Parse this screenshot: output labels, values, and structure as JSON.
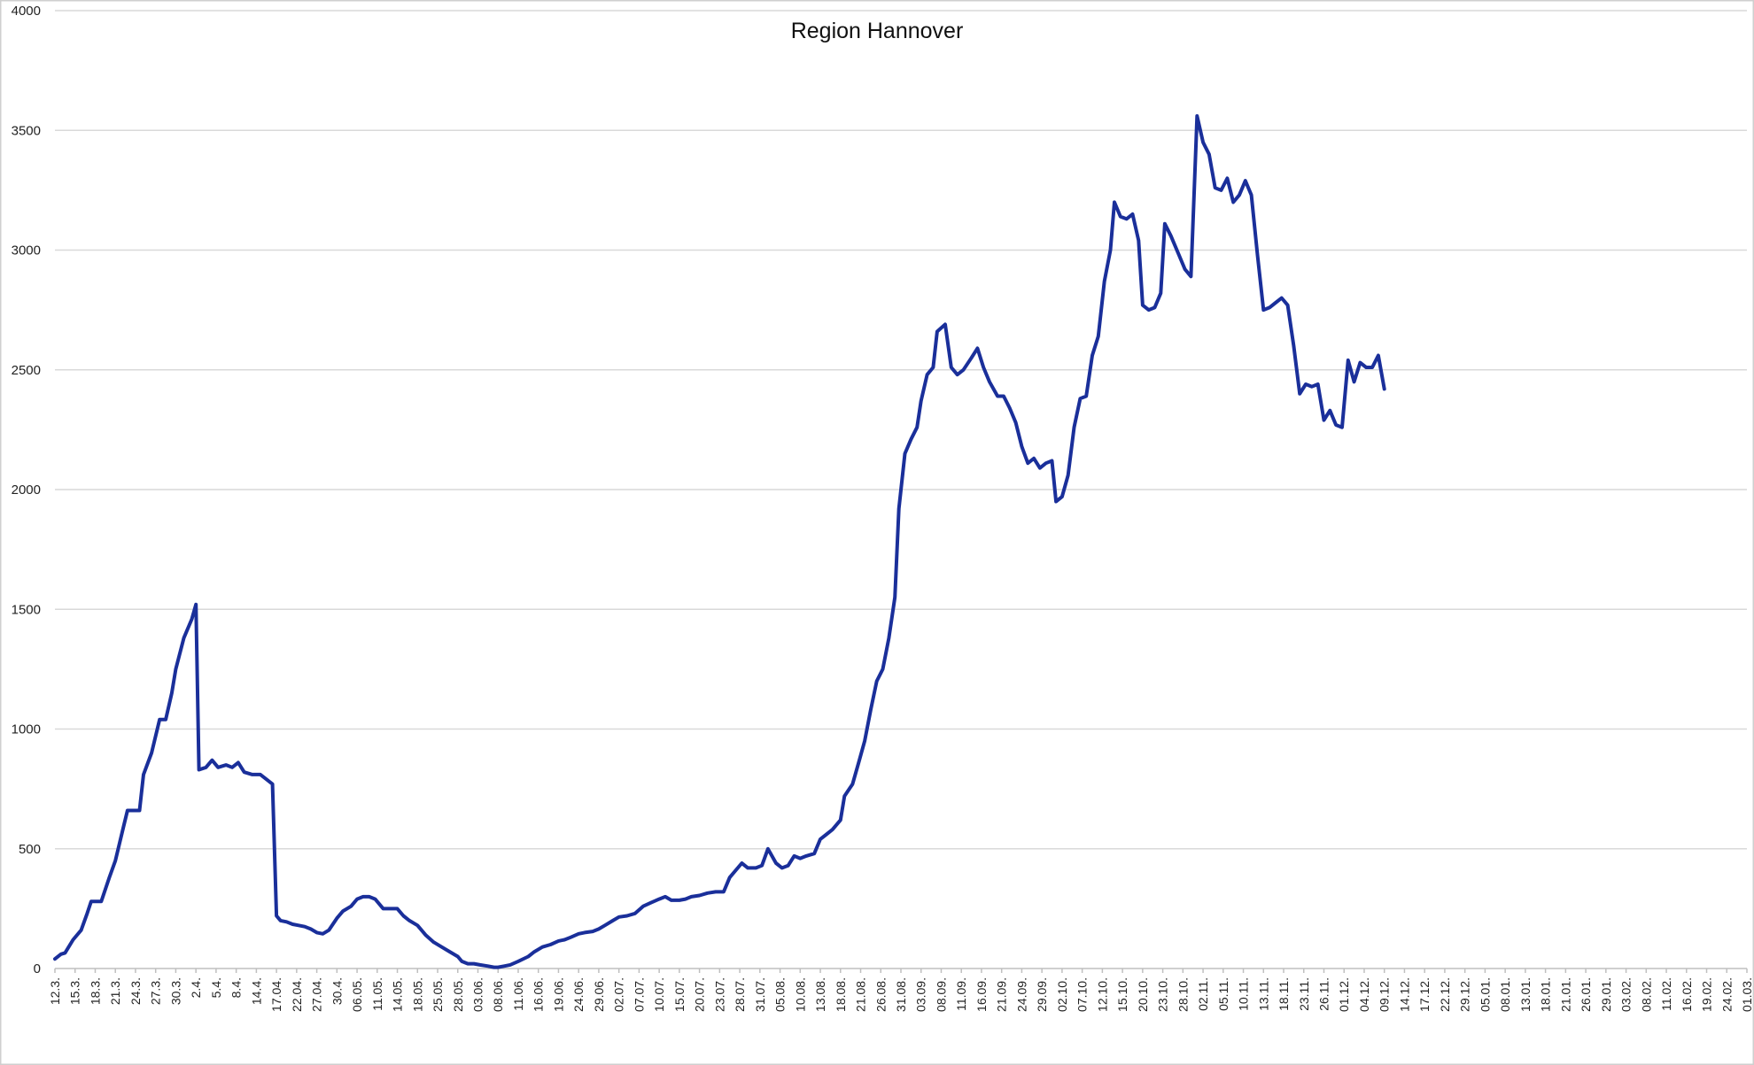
{
  "chart_data": {
    "type": "line",
    "title": "Region Hannover",
    "xlabel": "",
    "ylabel": "",
    "ylim": [
      0,
      4000
    ],
    "yticks": [
      "0",
      "500",
      "1000",
      "1500",
      "2000",
      "2500",
      "3000",
      "3500",
      "4000"
    ],
    "grid": true,
    "legend": "none",
    "x_tick_labels": [
      "12.3.",
      "15.3.",
      "18.3.",
      "21.3.",
      "24.3.",
      "27.3.",
      "30.3.",
      "2.4.",
      "5.4.",
      "8.4.",
      "14.4.",
      "17.04.",
      "22.04.",
      "27.04.",
      "30.4.",
      "06.05.",
      "11.05.",
      "14.05.",
      "18.05.",
      "25.05.",
      "28.05.",
      "03.06.",
      "08.06.",
      "11.06.",
      "16.06.",
      "19.06.",
      "24.06.",
      "29.06.",
      "02.07.",
      "07.07.",
      "10.07.",
      "15.07.",
      "20.07.",
      "23.07.",
      "28.07.",
      "31.07.",
      "05.08.",
      "10.08.",
      "13.08.",
      "18.08.",
      "21.08.",
      "26.08.",
      "31.08.",
      "03.09.",
      "08.09.",
      "11.09.",
      "16.09.",
      "21.09.",
      "24.09.",
      "29.09.",
      "02.10.",
      "07.10.",
      "12.10.",
      "15.10.",
      "20.10.",
      "23.10.",
      "28.10.",
      "02.11.",
      "05.11.",
      "10.11.",
      "13.11.",
      "18.11.",
      "23.11.",
      "26.11.",
      "01.12.",
      "04.12.",
      "09.12.",
      "14.12.",
      "17.12.",
      "22.12.",
      "29.12.",
      "05.01.",
      "08.01.",
      "13.01.",
      "18.01.",
      "21.01.",
      "26.01.",
      "29.01.",
      "03.02.",
      "08.02.",
      "11.02.",
      "16.02.",
      "19.02.",
      "24.02.",
      "01.03."
    ],
    "colors": {
      "line": "#1a2f9a",
      "grid": "#d9d9d9"
    },
    "series": [
      {
        "values": [
          [
            0,
            40
          ],
          [
            0.3,
            60
          ],
          [
            0.5,
            65
          ],
          [
            0.9,
            120
          ],
          [
            1.3,
            160
          ],
          [
            1.6,
            230
          ],
          [
            1.8,
            280
          ],
          [
            2.3,
            280
          ],
          [
            2.7,
            380
          ],
          [
            3,
            450
          ],
          [
            3.4,
            590
          ],
          [
            3.6,
            660
          ],
          [
            4,
            660
          ],
          [
            4.2,
            660
          ],
          [
            4.4,
            810
          ],
          [
            4.8,
            900
          ],
          [
            5.2,
            1040
          ],
          [
            5.5,
            1040
          ],
          [
            5.8,
            1150
          ],
          [
            6,
            1250
          ],
          [
            6.4,
            1380
          ],
          [
            6.8,
            1460
          ],
          [
            7,
            1520
          ],
          [
            7.15,
            830
          ],
          [
            7.5,
            840
          ],
          [
            7.8,
            870
          ],
          [
            8.1,
            840
          ],
          [
            8.5,
            850
          ],
          [
            8.8,
            840
          ],
          [
            9.1,
            860
          ],
          [
            9.4,
            820
          ],
          [
            9.8,
            810
          ],
          [
            10.2,
            810
          ],
          [
            10.5,
            790
          ],
          [
            10.8,
            770
          ],
          [
            11,
            220
          ],
          [
            11.2,
            200
          ],
          [
            11.5,
            195
          ],
          [
            11.8,
            185
          ],
          [
            12.1,
            180
          ],
          [
            12.4,
            175
          ],
          [
            12.7,
            165
          ],
          [
            13,
            150
          ],
          [
            13.3,
            145
          ],
          [
            13.6,
            160
          ],
          [
            14,
            210
          ],
          [
            14.3,
            240
          ],
          [
            14.7,
            260
          ],
          [
            15,
            290
          ],
          [
            15.3,
            300
          ],
          [
            15.6,
            300
          ],
          [
            15.9,
            290
          ],
          [
            16.3,
            250
          ],
          [
            16.6,
            250
          ],
          [
            17,
            250
          ],
          [
            17.3,
            220
          ],
          [
            17.6,
            200
          ],
          [
            18,
            180
          ],
          [
            18.4,
            140
          ],
          [
            18.8,
            110
          ],
          [
            19.2,
            90
          ],
          [
            19.6,
            70
          ],
          [
            20,
            50
          ],
          [
            20.2,
            30
          ],
          [
            20.5,
            20
          ],
          [
            20.8,
            20
          ],
          [
            21.1,
            15
          ],
          [
            21.5,
            10
          ],
          [
            21.8,
            5
          ],
          [
            22,
            5
          ],
          [
            22.3,
            10
          ],
          [
            22.6,
            15
          ],
          [
            23,
            30
          ],
          [
            23.5,
            50
          ],
          [
            23.8,
            70
          ],
          [
            24.2,
            90
          ],
          [
            24.6,
            100
          ],
          [
            25,
            115
          ],
          [
            25.3,
            120
          ],
          [
            25.6,
            130
          ],
          [
            26,
            145
          ],
          [
            26.3,
            150
          ],
          [
            26.7,
            155
          ],
          [
            27,
            165
          ],
          [
            27.3,
            180
          ],
          [
            27.7,
            200
          ],
          [
            28,
            215
          ],
          [
            28.4,
            220
          ],
          [
            28.8,
            230
          ],
          [
            29.2,
            260
          ],
          [
            29.6,
            275
          ],
          [
            30,
            290
          ],
          [
            30.3,
            300
          ],
          [
            30.6,
            285
          ],
          [
            31,
            285
          ],
          [
            31.3,
            290
          ],
          [
            31.6,
            300
          ],
          [
            32,
            305
          ],
          [
            32.4,
            315
          ],
          [
            32.8,
            320
          ],
          [
            33.2,
            320
          ],
          [
            33.5,
            380
          ],
          [
            33.8,
            410
          ],
          [
            34.1,
            440
          ],
          [
            34.4,
            420
          ],
          [
            34.8,
            420
          ],
          [
            35.1,
            430
          ],
          [
            35.4,
            500
          ],
          [
            35.8,
            440
          ],
          [
            36.1,
            420
          ],
          [
            36.4,
            430
          ],
          [
            36.7,
            470
          ],
          [
            37,
            460
          ],
          [
            37.3,
            470
          ],
          [
            37.7,
            480
          ],
          [
            38,
            540
          ],
          [
            38.3,
            560
          ],
          [
            38.6,
            580
          ],
          [
            39,
            620
          ],
          [
            39.2,
            720
          ],
          [
            39.6,
            770
          ],
          [
            39.9,
            860
          ],
          [
            40.2,
            950
          ],
          [
            40.5,
            1080
          ],
          [
            40.8,
            1200
          ],
          [
            41.1,
            1250
          ],
          [
            41.4,
            1380
          ],
          [
            41.7,
            1550
          ],
          [
            41.9,
            1920
          ],
          [
            42.2,
            2150
          ],
          [
            42.5,
            2210
          ],
          [
            42.8,
            2260
          ],
          [
            43,
            2370
          ],
          [
            43.3,
            2480
          ],
          [
            43.6,
            2510
          ],
          [
            43.8,
            2660
          ],
          [
            44.2,
            2690
          ],
          [
            44.5,
            2510
          ],
          [
            44.8,
            2480
          ],
          [
            45.1,
            2500
          ],
          [
            45.5,
            2550
          ],
          [
            45.8,
            2590
          ],
          [
            46.1,
            2510
          ],
          [
            46.4,
            2450
          ],
          [
            46.8,
            2390
          ],
          [
            47.1,
            2390
          ],
          [
            47.4,
            2340
          ],
          [
            47.7,
            2280
          ],
          [
            48,
            2180
          ],
          [
            48.3,
            2110
          ],
          [
            48.6,
            2130
          ],
          [
            48.9,
            2090
          ],
          [
            49.2,
            2110
          ],
          [
            49.5,
            2120
          ],
          [
            49.7,
            1950
          ],
          [
            50,
            1970
          ],
          [
            50.3,
            2060
          ],
          [
            50.6,
            2260
          ],
          [
            50.9,
            2380
          ],
          [
            51.2,
            2390
          ],
          [
            51.5,
            2560
          ],
          [
            51.8,
            2640
          ],
          [
            52.1,
            2870
          ],
          [
            52.4,
            3000
          ],
          [
            52.6,
            3200
          ],
          [
            52.9,
            3140
          ],
          [
            53.2,
            3130
          ],
          [
            53.5,
            3150
          ],
          [
            53.8,
            3040
          ],
          [
            54,
            2770
          ],
          [
            54.3,
            2750
          ],
          [
            54.6,
            2760
          ],
          [
            54.9,
            2820
          ],
          [
            55.1,
            3110
          ],
          [
            55.4,
            3060
          ],
          [
            55.8,
            2980
          ],
          [
            56.1,
            2920
          ],
          [
            56.4,
            2890
          ],
          [
            56.7,
            3560
          ],
          [
            57,
            3450
          ],
          [
            57.3,
            3400
          ],
          [
            57.6,
            3260
          ],
          [
            57.9,
            3250
          ],
          [
            58.2,
            3300
          ],
          [
            58.5,
            3200
          ],
          [
            58.8,
            3230
          ],
          [
            59.1,
            3290
          ],
          [
            59.4,
            3230
          ],
          [
            59.7,
            2980
          ],
          [
            60,
            2750
          ],
          [
            60.3,
            2760
          ],
          [
            60.6,
            2780
          ],
          [
            60.9,
            2800
          ],
          [
            61.2,
            2770
          ],
          [
            61.5,
            2600
          ],
          [
            61.8,
            2400
          ],
          [
            62.1,
            2440
          ],
          [
            62.4,
            2430
          ],
          [
            62.7,
            2440
          ],
          [
            63,
            2290
          ],
          [
            63.3,
            2330
          ],
          [
            63.6,
            2270
          ],
          [
            63.9,
            2260
          ],
          [
            64.2,
            2540
          ],
          [
            64.5,
            2450
          ],
          [
            64.8,
            2530
          ],
          [
            65.1,
            2510
          ],
          [
            65.4,
            2510
          ],
          [
            65.7,
            2560
          ],
          [
            66,
            2420
          ]
        ]
      }
    ]
  }
}
